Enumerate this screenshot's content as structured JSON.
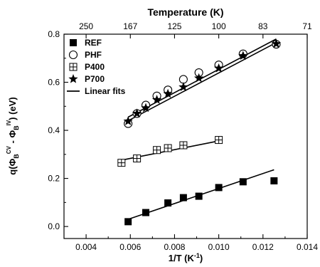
{
  "chart_data": {
    "type": "scatter",
    "xlabel_main": "1/T (K",
    "xlabel_sup": "-1",
    "xlabel_end": ")",
    "ylabel_lead": "q(Φ",
    "ylabel_sub1": "B",
    "ylabel_sup1": "CV",
    "ylabel_mid": " - Φ",
    "ylabel_sub2": "B",
    "ylabel_sup2": "IV",
    "ylabel_tail": ") (eV)",
    "top_xlabel": "Temperature (K)",
    "xlim": [
      0.003,
      0.014
    ],
    "ylim": [
      -0.05,
      0.8
    ],
    "x_ticks": [
      0.004,
      0.006,
      0.008,
      0.01,
      0.012,
      0.014
    ],
    "x_tick_labels": [
      "0.004",
      "0.006",
      "0.008",
      "0.010",
      "0.012",
      "0.014"
    ],
    "y_ticks": [
      0.0,
      0.2,
      0.4,
      0.6,
      0.8
    ],
    "y_tick_labels": [
      "0.0",
      "0.2",
      "0.4",
      "0.6",
      "0.8"
    ],
    "top_ticks": [
      {
        "label": "250",
        "x": 0.004
      },
      {
        "label": "167",
        "x": 0.006
      },
      {
        "label": "125",
        "x": 0.008
      },
      {
        "label": "100",
        "x": 0.01
      },
      {
        "label": "83",
        "x": 0.012
      },
      {
        "label": "71",
        "x": 0.014
      }
    ],
    "legend_position": "top-left",
    "series": [
      {
        "name": "REF",
        "marker": "filled-square",
        "x": [
          0.0059,
          0.0067,
          0.0077,
          0.0084,
          0.0091,
          0.01,
          0.0111,
          0.0125
        ],
        "y": [
          0.02,
          0.058,
          0.098,
          0.12,
          0.126,
          0.162,
          0.186,
          0.19
        ]
      },
      {
        "name": "PHF",
        "marker": "open-circle",
        "x": [
          0.0059,
          0.0063,
          0.0067,
          0.0072,
          0.0077,
          0.0084,
          0.0091,
          0.01,
          0.0111,
          0.0126
        ],
        "y": [
          0.428,
          0.47,
          0.505,
          0.543,
          0.568,
          0.612,
          0.64,
          0.672,
          0.718,
          0.758
        ]
      },
      {
        "name": "P400",
        "marker": "crossed-square",
        "x": [
          0.0056,
          0.0063,
          0.0072,
          0.0077,
          0.0084,
          0.01
        ],
        "y": [
          0.265,
          0.283,
          0.318,
          0.326,
          0.338,
          0.36
        ]
      },
      {
        "name": "P700",
        "marker": "filled-star",
        "x": [
          0.0059,
          0.0063,
          0.0067,
          0.0072,
          0.0077,
          0.0084,
          0.0091,
          0.01,
          0.0111,
          0.0126
        ],
        "y": [
          0.438,
          0.47,
          0.493,
          0.527,
          0.552,
          0.58,
          0.617,
          0.658,
          0.71,
          0.76
        ]
      }
    ],
    "fit_legend": "Linear fits",
    "fits": [
      {
        "x": [
          0.0059,
          0.0125
        ],
        "y": [
          0.03,
          0.236
        ]
      },
      {
        "x": [
          0.0056,
          0.01
        ],
        "y": [
          0.276,
          0.356
        ]
      },
      {
        "x": [
          0.0059,
          0.0126
        ],
        "y": [
          0.455,
          0.78
        ]
      },
      {
        "x": [
          0.0059,
          0.0126
        ],
        "y": [
          0.44,
          0.765
        ]
      }
    ]
  }
}
